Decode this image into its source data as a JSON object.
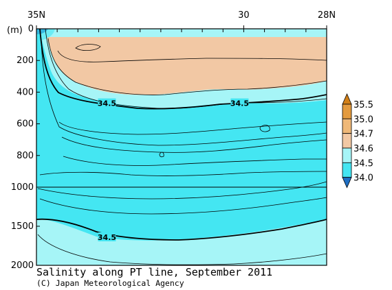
{
  "chart_data": {
    "type": "heatmap",
    "title": "Salinity along PT line, September 2011",
    "credit": "(C) Japan Meteorological Agency",
    "y_unit_label": "(m)",
    "x_ticks": [
      {
        "value": 35,
        "label": "35N"
      },
      {
        "value": 30,
        "label": "30"
      },
      {
        "value": 28,
        "label": "28N"
      }
    ],
    "y_ticks": [
      {
        "value": 0,
        "label": "0"
      },
      {
        "value": 200,
        "label": "200"
      },
      {
        "value": 400,
        "label": "400"
      },
      {
        "value": 600,
        "label": "600"
      },
      {
        "value": 800,
        "label": "800"
      },
      {
        "value": 1000,
        "label": "1000"
      },
      {
        "value": 1500,
        "label": "1500"
      },
      {
        "value": 2000,
        "label": "2000"
      }
    ],
    "y_scale": "piecewise linear: 0–1000 m and 1000–2000 m (compressed)",
    "xlim": [
      35,
      28
    ],
    "ylim": [
      0,
      2000
    ],
    "colorbar": {
      "levels": [
        34.0,
        34.5,
        34.6,
        34.7,
        35.0,
        35.5
      ],
      "labels": [
        "34.0",
        "34.5",
        "34.6",
        "34.7",
        "35.0",
        "35.5"
      ],
      "colors": [
        "#1f6fc4",
        "#44e6f2",
        "#a6f5f7",
        "#f2c8a4",
        "#efb878",
        "#e39a3e",
        "#d27f17"
      ]
    },
    "contour_labels": [
      {
        "text": "34.5",
        "lat": 33.3,
        "depth": 470
      },
      {
        "text": "34.5",
        "lat": 30.1,
        "depth": 470
      },
      {
        "text": "34.5",
        "lat": 33.3,
        "depth": 1640
      }
    ],
    "layers": [
      {
        "name": "upper-34.5-isohaline",
        "lat": [
          35.0,
          34.7,
          34.4,
          33.8,
          33.2,
          32.6,
          32.0,
          31.4,
          30.8,
          30.2,
          29.6,
          29.0,
          28.4,
          28.0
        ],
        "depth": [
          420,
          425,
          440,
          480,
          500,
          505,
          495,
          480,
          470,
          460,
          450,
          430,
          410,
          400
        ]
      },
      {
        "name": "lower-34.5-isohaline",
        "lat": [
          35.0,
          34.6,
          34.2,
          33.6,
          33.0,
          32.4,
          31.8,
          31.2,
          30.6,
          30.0,
          29.4,
          28.8,
          28.2,
          28.0
        ],
        "depth": [
          1450,
          1500,
          1570,
          1630,
          1650,
          1660,
          1670,
          1650,
          1620,
          1560,
          1520,
          1490,
          1460,
          1450
        ]
      }
    ]
  }
}
